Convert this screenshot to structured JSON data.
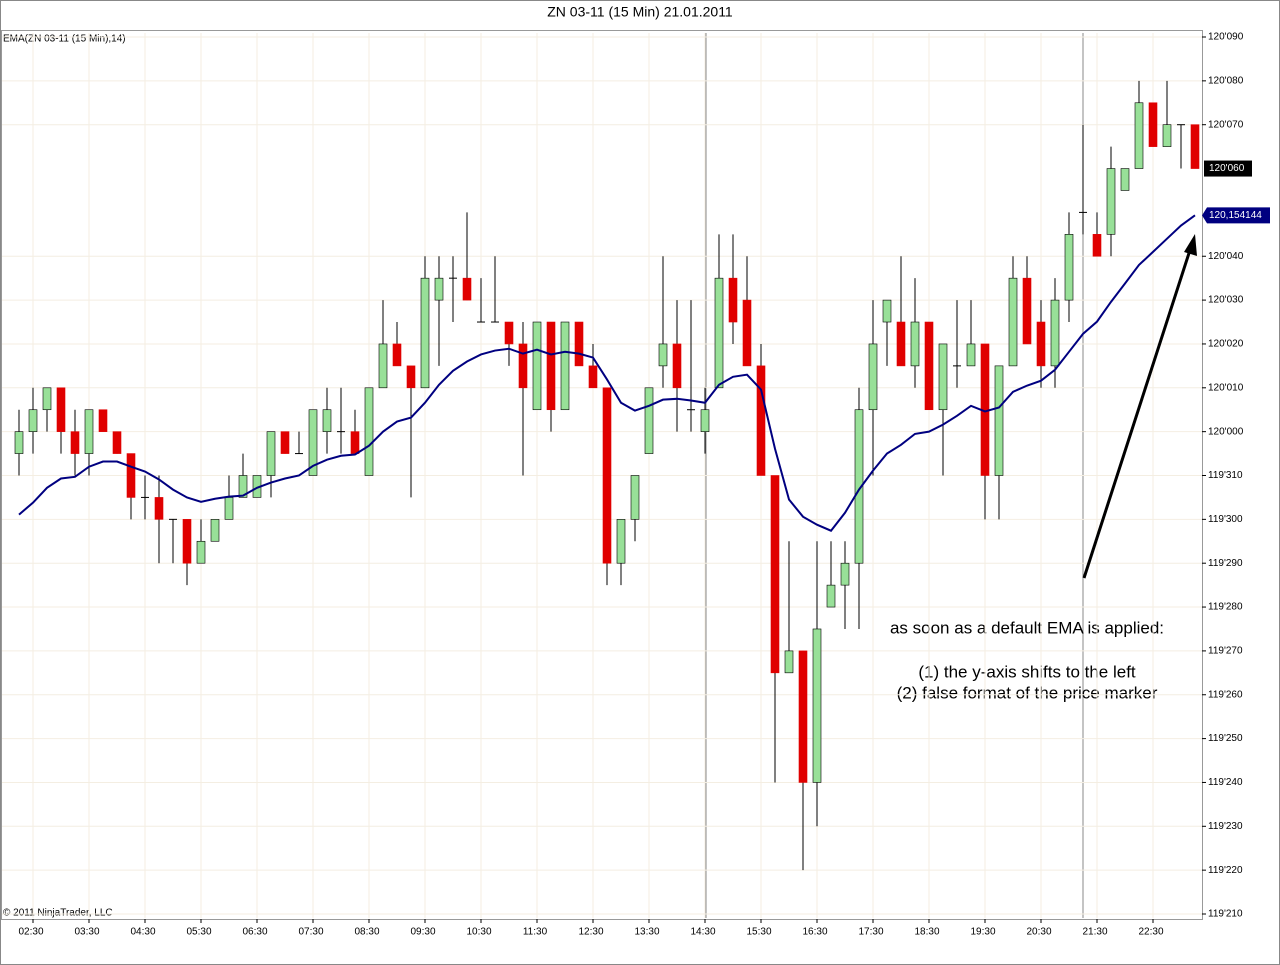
{
  "chart_data": {
    "type": "candlestick",
    "title": "ZN 03-11 (15 Min)  21.01.2011",
    "copyright": "© 2011 NinjaTrader, LLC",
    "annotation": [
      "as soon as a default EMA is applied:",
      "(1) the y-axis shifts to the left",
      "(2) false format of the price marker"
    ],
    "up_color": "#98e098",
    "down_color": "#e00000",
    "categories": [
      null,
      "02:30",
      null,
      null,
      null,
      "03:30",
      null,
      null,
      null,
      "04:30",
      null,
      null,
      null,
      "05:30",
      null,
      null,
      null,
      "06:30",
      null,
      null,
      null,
      "07:30",
      null,
      null,
      null,
      "08:30",
      null,
      null,
      null,
      "09:30",
      null,
      null,
      null,
      "10:30",
      null,
      null,
      null,
      "11:30",
      null,
      null,
      null,
      "12:30",
      null,
      null,
      null,
      "13:30",
      null,
      null,
      null,
      "14:30",
      null,
      null,
      null,
      "15:30",
      null,
      null,
      null,
      "16:30",
      null,
      null,
      null,
      "17:30",
      null,
      null,
      null,
      "18:30",
      null,
      null,
      null,
      "19:30",
      null,
      null,
      null,
      "20:30",
      null,
      null,
      null,
      "21:30",
      null,
      null,
      null,
      "22:30",
      null,
      null,
      null
    ],
    "open": [
      119.984375,
      120,
      120.015625,
      120.03125,
      120,
      119.984375,
      120.015625,
      120,
      119.984375,
      119.953125,
      119.953125,
      119.9375,
      119.9375,
      119.90625,
      119.921875,
      119.9375,
      119.953125,
      119.953125,
      119.96875,
      120,
      119.984375,
      119.96875,
      120,
      120,
      120,
      119.96875,
      120.03125,
      120.0625,
      120.046875,
      120.03125,
      120.09375,
      120.109375,
      120.109375,
      120.078125,
      120.078125,
      120.078125,
      120.0625,
      120.015625,
      120.078125,
      120.015625,
      120.078125,
      120.046875,
      120.03125,
      119.90625,
      119.9375,
      119.984375,
      120.046875,
      120.0625,
      120.015625,
      120,
      120.03125,
      120.109375,
      120.09375,
      120.046875,
      119.96875,
      119.828125,
      119.84375,
      119.75,
      119.875,
      119.890625,
      119.90625,
      120.015625,
      120.078125,
      120.078125,
      120.046875,
      120.078125,
      120.015625,
      120.046875,
      120.046875,
      120.0625,
      119.96875,
      120.046875,
      120.109375,
      120.078125,
      120.046875,
      120.09375,
      120.15625,
      120.140625,
      120.140625,
      120.171875,
      120.1875,
      120.234375,
      120.203125,
      120.21875,
      120.21875
    ],
    "high": [
      120.015625,
      120.03125,
      120.03125,
      120.03125,
      120.015625,
      120.015625,
      120.015625,
      120,
      119.984375,
      119.96875,
      119.96875,
      119.9375,
      119.9375,
      119.9375,
      119.9375,
      119.96875,
      119.984375,
      119.96875,
      120,
      120,
      120,
      120.015625,
      120.03125,
      120.03125,
      120.015625,
      120.03125,
      120.09375,
      120.078125,
      120.046875,
      120.125,
      120.125,
      120.125,
      120.15625,
      120.109375,
      120.125,
      120.078125,
      120.078125,
      120.078125,
      120.078125,
      120.078125,
      120.078125,
      120.0625,
      120.03125,
      119.9375,
      119.96875,
      120.03125,
      120.125,
      120.09375,
      120.09375,
      120.03125,
      120.140625,
      120.140625,
      120.125,
      120.0625,
      119.96875,
      119.921875,
      119.84375,
      119.921875,
      119.921875,
      119.921875,
      120.03125,
      120.09375,
      120.09375,
      120.125,
      120.109375,
      120.078125,
      120.0625,
      120.09375,
      120.09375,
      120.0625,
      120.046875,
      120.125,
      120.125,
      120.09375,
      120.109375,
      120.15625,
      120.21875,
      120.15625,
      120.203125,
      120.1875,
      120.25,
      120.234375,
      120.25,
      120.21875,
      120.21875
    ],
    "low": [
      119.96875,
      119.984375,
      120,
      119.984375,
      119.96875,
      119.96875,
      120,
      119.984375,
      119.9375,
      119.9375,
      119.90625,
      119.90625,
      119.890625,
      119.90625,
      119.921875,
      119.9375,
      119.953125,
      119.953125,
      119.953125,
      119.984375,
      119.984375,
      119.96875,
      119.984375,
      119.984375,
      119.984375,
      119.96875,
      120.03125,
      120.046875,
      119.953125,
      120.03125,
      120.046875,
      120.078125,
      120.09375,
      120.078125,
      120.078125,
      120.046875,
      119.96875,
      120.015625,
      120,
      120.015625,
      120.046875,
      120.03125,
      119.890625,
      119.890625,
      119.921875,
      119.984375,
      120.03125,
      120,
      120,
      119.984375,
      120.03125,
      120.0625,
      120.046875,
      119.96875,
      119.75,
      119.828125,
      119.6875,
      119.71875,
      119.875,
      119.859375,
      119.859375,
      119.96875,
      120.046875,
      120.046875,
      120.03125,
      120.015625,
      119.96875,
      120.03125,
      120.046875,
      119.9375,
      119.9375,
      120.046875,
      120.0625,
      120.03125,
      120.03125,
      120.078125,
      120.140625,
      120.125,
      120.125,
      120.171875,
      120.1875,
      120.203125,
      120.203125,
      120.1875,
      120.1875
    ],
    "close": [
      120,
      120.015625,
      120.03125,
      120,
      119.984375,
      120.015625,
      120,
      119.984375,
      119.953125,
      119.953125,
      119.9375,
      119.9375,
      119.90625,
      119.921875,
      119.9375,
      119.953125,
      119.96875,
      119.96875,
      120,
      119.984375,
      119.984375,
      120.015625,
      120.015625,
      120,
      119.984375,
      120.03125,
      120.0625,
      120.046875,
      120.03125,
      120.109375,
      120.109375,
      120.109375,
      120.09375,
      120.078125,
      120.078125,
      120.0625,
      120.03125,
      120.078125,
      120.015625,
      120.078125,
      120.046875,
      120.03125,
      119.90625,
      119.9375,
      119.96875,
      120.03125,
      120.0625,
      120.03125,
      120.015625,
      120.015625,
      120.109375,
      120.078125,
      120.046875,
      119.96875,
      119.828125,
      119.84375,
      119.75,
      119.859375,
      119.890625,
      119.90625,
      120.015625,
      120.0625,
      120.09375,
      120.046875,
      120.078125,
      120.015625,
      120.0625,
      120.046875,
      120.0625,
      119.96875,
      120.046875,
      120.109375,
      120.0625,
      120.046875,
      120.09375,
      120.140625,
      120.15625,
      120.125,
      120.1875,
      120.1875,
      120.234375,
      120.203125,
      120.21875,
      120.21875,
      120.1875
    ],
    "ema": {
      "name": "EMA(ZN 03-11 (15 Min),14)",
      "color": "#000080",
      "values": [
        119.9409,
        119.9494,
        119.96,
        119.9666,
        119.9678,
        119.975,
        119.9787,
        119.9787,
        119.975,
        119.9716,
        119.9659,
        119.9587,
        119.9531,
        119.95,
        119.9522,
        119.9537,
        119.9544,
        119.96,
        119.9637,
        119.9666,
        119.9688,
        119.9756,
        119.98,
        119.9828,
        119.9837,
        119.99,
        120,
        120.0072,
        120.01,
        120.0206,
        120.0334,
        120.0434,
        120.05,
        120.055,
        120.0578,
        120.0591,
        120.0556,
        120.0584,
        120.055,
        120.0569,
        120.0556,
        120.0528,
        120.0372,
        120.0206,
        120.015,
        120.0184,
        120.0228,
        120.0234,
        120.0222,
        120.0206,
        120.0334,
        120.0391,
        120.0406,
        120.03,
        119.9878,
        119.9516,
        119.9394,
        119.9337,
        119.9294,
        119.9422,
        119.9587,
        119.9722,
        119.9844,
        119.9906,
        119.9984,
        120,
        120.005,
        120.0113,
        120.0184,
        120.0144,
        120.0172,
        120.0284,
        120.0328,
        120.0363,
        120.0441,
        120.0569,
        120.0697,
        120.0784,
        120.0925,
        120.1056,
        120.1188,
        120.1281,
        120.1375,
        120.1469,
        120.154144
      ]
    },
    "last_price": {
      "value": 120.1875,
      "label": "120'060"
    },
    "ema_marker": {
      "value": 120.154144,
      "label": "120,154144"
    },
    "ylim": [
      119.6534,
      120.2841
    ],
    "yticks": [
      {
        "value": 119.65625,
        "label": "119'210"
      },
      {
        "value": 119.6875,
        "label": "119'220"
      },
      {
        "value": 119.71875,
        "label": "119'230"
      },
      {
        "value": 119.75,
        "label": "119'240"
      },
      {
        "value": 119.78125,
        "label": "119'250"
      },
      {
        "value": 119.8125,
        "label": "119'260"
      },
      {
        "value": 119.84375,
        "label": "119'270"
      },
      {
        "value": 119.875,
        "label": "119'280"
      },
      {
        "value": 119.90625,
        "label": "119'290"
      },
      {
        "value": 119.9375,
        "label": "119'300"
      },
      {
        "value": 119.96875,
        "label": "119'310"
      },
      {
        "value": 120,
        "label": "120'000"
      },
      {
        "value": 120.03125,
        "label": "120'010"
      },
      {
        "value": 120.0625,
        "label": "120'020"
      },
      {
        "value": 120.09375,
        "label": "120'030"
      },
      {
        "value": 120.125,
        "label": "120'040"
      },
      {
        "value": 120.21875,
        "label": "120'070"
      },
      {
        "value": 120.25,
        "label": "120'080"
      },
      {
        "value": 120.28125,
        "label": "120'090"
      }
    ],
    "grid": true
  }
}
